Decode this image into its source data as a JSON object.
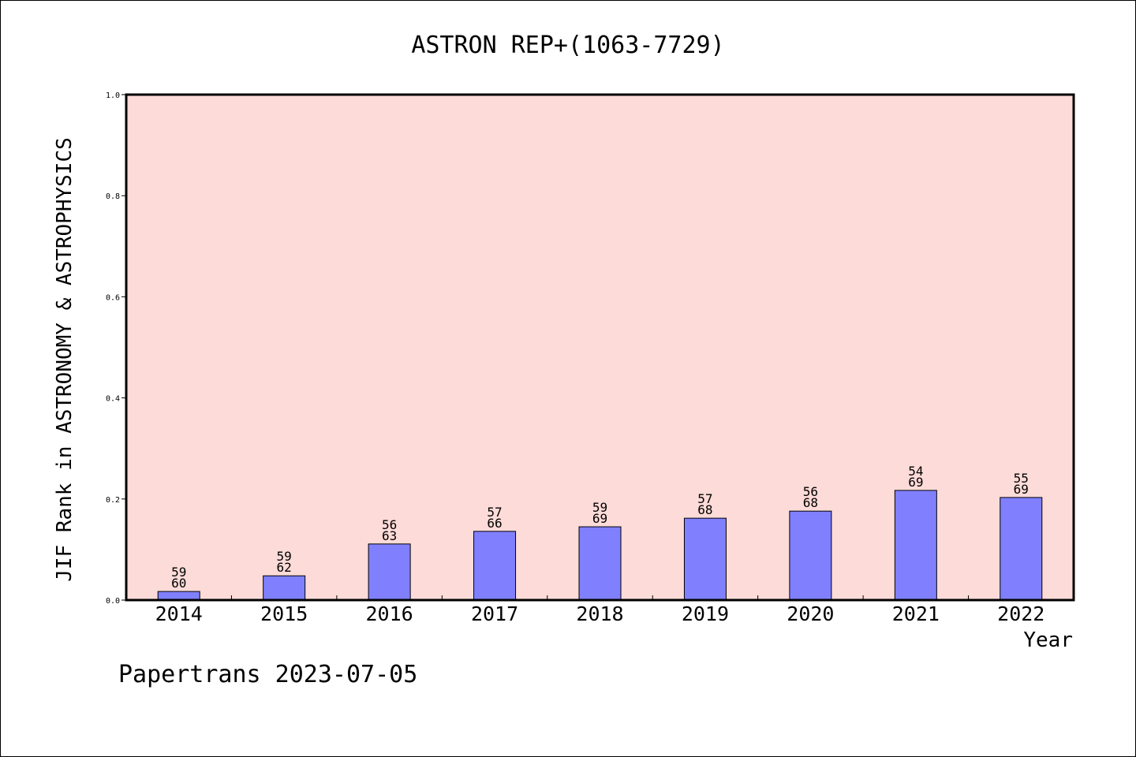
{
  "chart_data": {
    "type": "bar",
    "title": "ASTRON REP+(1063-7729)",
    "xlabel": "Year",
    "ylabel": "JIF Rank in ASTRONOMY & ASTROPHYSICS",
    "ylim": [
      0,
      1.0
    ],
    "yticks": [
      "0.0",
      "0.2",
      "0.4",
      "0.6",
      "0.8",
      "1.0"
    ],
    "categories": [
      "2014",
      "2015",
      "2016",
      "2017",
      "2018",
      "2019",
      "2020",
      "2021",
      "2022"
    ],
    "values": [
      0.017,
      0.048,
      0.111,
      0.136,
      0.145,
      0.162,
      0.176,
      0.217,
      0.203
    ],
    "rank_labels": [
      {
        "rank": "59",
        "total": "60"
      },
      {
        "rank": "59",
        "total": "62"
      },
      {
        "rank": "56",
        "total": "63"
      },
      {
        "rank": "57",
        "total": "66"
      },
      {
        "rank": "59",
        "total": "69"
      },
      {
        "rank": "57",
        "total": "68"
      },
      {
        "rank": "56",
        "total": "68"
      },
      {
        "rank": "54",
        "total": "69"
      },
      {
        "rank": "55",
        "total": "69"
      }
    ],
    "grid": false,
    "plot_background": "#fddbd8",
    "bar_color": "#8080ff"
  },
  "footer": "Papertrans 2023-07-05"
}
